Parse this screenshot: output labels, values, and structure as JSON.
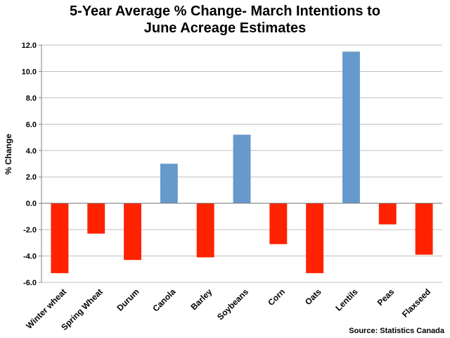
{
  "chart_data": {
    "type": "bar",
    "title_lines": [
      "5-Year Average % Change- March Intentions to",
      "June Acreage Estimates"
    ],
    "ylabel": "% Change",
    "xlabel": "",
    "categories": [
      "Winter wheat",
      "Spring Wheat",
      "Durum",
      "Canola",
      "Barley",
      "Soybeans",
      "Corn",
      "Oats",
      "Lentils",
      "Peas",
      "Flaxseed"
    ],
    "values": [
      -5.3,
      -2.3,
      -4.3,
      3.0,
      -4.1,
      5.2,
      -3.1,
      -5.3,
      11.5,
      -1.6,
      -3.9
    ],
    "ylim": [
      -6.0,
      12.0
    ],
    "yticks": [
      "-6.0",
      "-4.0",
      "-2.0",
      "0.0",
      "2.0",
      "4.0",
      "6.0",
      "8.0",
      "10.0",
      "12.0"
    ],
    "colors": {
      "positive": "#6699cc",
      "negative": "#ff2200"
    },
    "grid": true,
    "source": "Source: Statistics Canada"
  }
}
